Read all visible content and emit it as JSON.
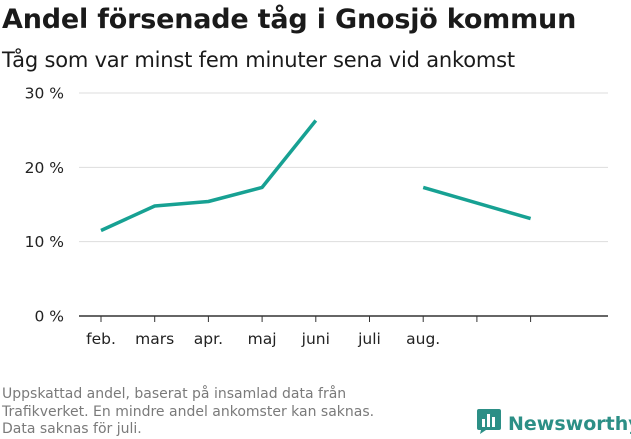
{
  "title": "Andel försenade tåg i Gnosjö kommun",
  "subtitle": "Tåg som var minst fem minuter sena vid ankomst",
  "footnote": [
    "Uppskattad andel, baserat på insamlad data från",
    "Trafikverket. En mindre andel ankomster kan saknas.",
    "Data saknas för juli."
  ],
  "brand": {
    "name": "Newsworthy",
    "icon": "newsworthy-logo-icon"
  },
  "colors": {
    "line": "#17a193",
    "grid": "#dddddd",
    "axis": "#333333",
    "brand": "#2c8f86"
  },
  "chart_data": {
    "type": "line",
    "categories": [
      "feb.",
      "mars",
      "apr.",
      "maj",
      "juni",
      "juli",
      "aug.",
      "",
      ""
    ],
    "series": [
      {
        "values": [
          11.5,
          14.8,
          15.4,
          17.3,
          26.3,
          null,
          17.3,
          null,
          13.1
        ]
      }
    ],
    "yticks": [
      {
        "value": 0,
        "label": "0 %"
      },
      {
        "value": 10,
        "label": "10 %"
      },
      {
        "value": 20,
        "label": "20 %"
      },
      {
        "value": 30,
        "label": "30 %"
      }
    ],
    "ylim": [
      0,
      30
    ],
    "grid": true,
    "xlabel": "",
    "ylabel": ""
  }
}
